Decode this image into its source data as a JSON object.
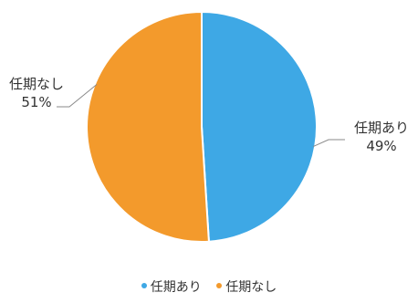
{
  "chart_data": {
    "type": "pie",
    "slices": [
      {
        "label": "任期あり",
        "value": 49,
        "value_label": "49%",
        "color": "#3ea8e5"
      },
      {
        "label": "任期なし",
        "value": 51,
        "value_label": "51%",
        "color": "#f39a2c"
      }
    ],
    "start_angle_deg": 0,
    "direction": "clockwise",
    "legend": {
      "placement": "bottom",
      "items": [
        "任期あり",
        "任期なし"
      ]
    }
  }
}
